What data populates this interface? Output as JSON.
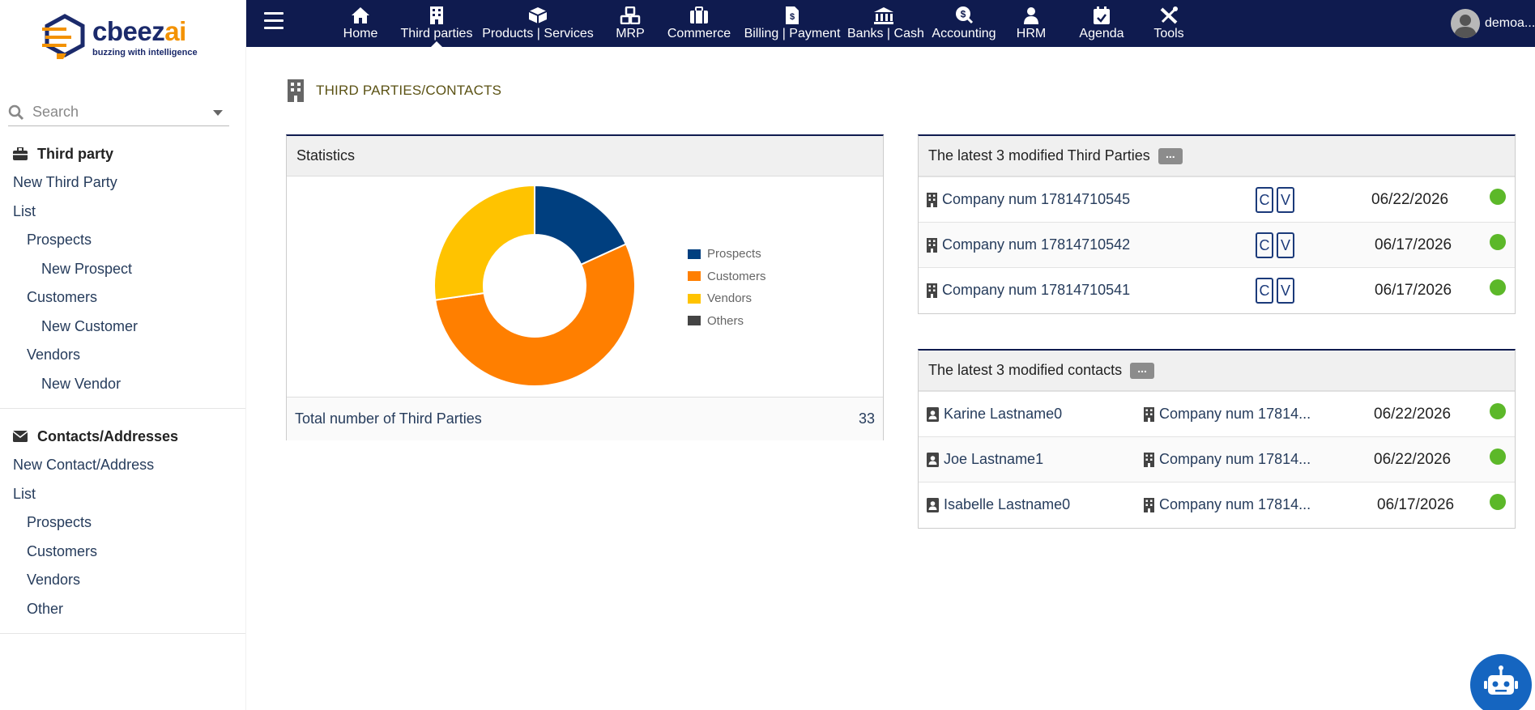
{
  "brand": {
    "name_main": "cbeez",
    "name_accent": "ai",
    "tagline": "buzzing with intelligence",
    "colors": {
      "navy": "#0f1b4f",
      "orange": "#f39200"
    }
  },
  "search": {
    "placeholder": "Search"
  },
  "sidebar": {
    "section1": {
      "title": "Third party",
      "icon": "briefcase-icon",
      "items": [
        {
          "label": "New Third Party",
          "level": 0
        },
        {
          "label": "List",
          "level": 0
        },
        {
          "label": "Prospects",
          "level": 1
        },
        {
          "label": "New Prospect",
          "level": 2
        },
        {
          "label": "Customers",
          "level": 1
        },
        {
          "label": "New Customer",
          "level": 2
        },
        {
          "label": "Vendors",
          "level": 1
        },
        {
          "label": "New Vendor",
          "level": 2
        }
      ]
    },
    "section2": {
      "title": "Contacts/Addresses",
      "icon": "envelope-icon",
      "items": [
        {
          "label": "New Contact/Address",
          "level": 0
        },
        {
          "label": "List",
          "level": 0
        },
        {
          "label": "Prospects",
          "level": 1
        },
        {
          "label": "Customers",
          "level": 1
        },
        {
          "label": "Vendors",
          "level": 1
        },
        {
          "label": "Other",
          "level": 1
        }
      ]
    }
  },
  "topnav": {
    "items": [
      {
        "label": "Home",
        "icon": "home-icon"
      },
      {
        "label": "Third parties",
        "icon": "building-icon",
        "active": true
      },
      {
        "label": "Products | Services",
        "icon": "box-icon"
      },
      {
        "label": "MRP",
        "icon": "cubes-icon"
      },
      {
        "label": "Commerce",
        "icon": "suitcase-icon"
      },
      {
        "label": "Billing | Payment",
        "icon": "invoice-icon"
      },
      {
        "label": "Banks | Cash",
        "icon": "bank-icon"
      },
      {
        "label": "Accounting",
        "icon": "coin-icon"
      },
      {
        "label": "HRM",
        "icon": "person-icon"
      },
      {
        "label": "Agenda",
        "icon": "calendar-icon"
      },
      {
        "label": "Tools",
        "icon": "tools-icon"
      }
    ],
    "user": "demoa..."
  },
  "page": {
    "title": "THIRD PARTIES/CONTACTS"
  },
  "statistics": {
    "title": "Statistics",
    "total_label": "Total number of Third Parties",
    "total_value": "33"
  },
  "chart_data": {
    "type": "pie",
    "categories": [
      "Prospects",
      "Customers",
      "Vendors",
      "Others"
    ],
    "values": [
      6,
      18,
      9,
      0
    ],
    "colors": [
      "#003f7f",
      "#ff7f00",
      "#ffc300",
      "#444444"
    ],
    "legend_position": "right",
    "donut": true
  },
  "latest_thirdparties": {
    "title": "The latest 3 modified Third Parties",
    "more": "...",
    "rows": [
      {
        "name": "Company num 17814710545",
        "c": "C",
        "v": "V",
        "date": "06/22/2026"
      },
      {
        "name": "Company num 17814710542",
        "c": "C",
        "v": "V",
        "date": "06/17/2026"
      },
      {
        "name": "Company num 17814710541",
        "c": "C",
        "v": "V",
        "date": "06/17/2026"
      }
    ]
  },
  "latest_contacts": {
    "title": "The latest 3 modified contacts",
    "more": "...",
    "rows": [
      {
        "name": "Karine Lastname0",
        "company": "Company num 17814...",
        "date": "06/22/2026"
      },
      {
        "name": "Joe Lastname1",
        "company": "Company num 17814...",
        "date": "06/22/2026"
      },
      {
        "name": "Isabelle Lastname0",
        "company": "Company num 17814...",
        "date": "06/17/2026"
      }
    ]
  }
}
